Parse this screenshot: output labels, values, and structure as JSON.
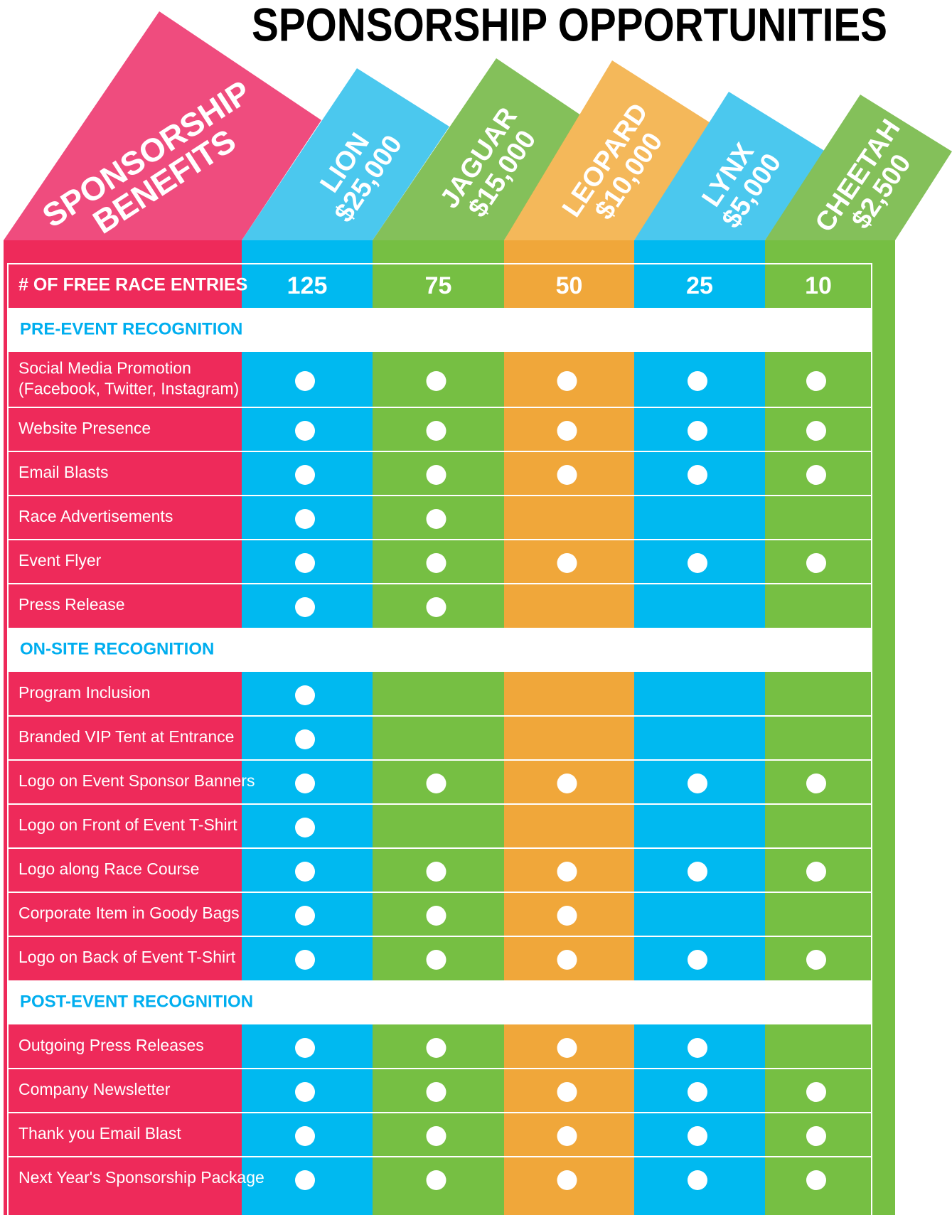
{
  "title": "SPONSORSHIP OPPORTUNITIES",
  "benefits_label": [
    "SPONSORSHIP",
    "BENEFITS"
  ],
  "tiers": [
    {
      "name": "LION",
      "price": "$25,000",
      "color": "#00b9f0",
      "tab_color": "#4bc8ee"
    },
    {
      "name": "JAGUAR",
      "price": "$15,000",
      "color": "#76bf43",
      "tab_color": "#84c05a"
    },
    {
      "name": "LEOPARD",
      "price": "$10,000",
      "color": "#f0a73a",
      "tab_color": "#f4b85a"
    },
    {
      "name": "LYNX",
      "price": "$5,000",
      "color": "#00b9f0",
      "tab_color": "#4bc8ee"
    },
    {
      "name": "CHEETAH",
      "price": "$2,500",
      "color": "#76bf43",
      "tab_color": "#84c05a"
    }
  ],
  "entries": {
    "label": "# OF FREE RACE ENTRIES",
    "values": [
      125,
      75,
      50,
      25,
      10
    ]
  },
  "sections": [
    {
      "title": "PRE-EVENT RECOGNITION",
      "rows": [
        {
          "label": [
            "Social Media Promotion",
            "(Facebook, Twitter, Instagram)"
          ],
          "checks": [
            true,
            true,
            true,
            true,
            true
          ]
        },
        {
          "label": [
            "Website Presence"
          ],
          "checks": [
            true,
            true,
            true,
            true,
            true
          ]
        },
        {
          "label": [
            "Email Blasts"
          ],
          "checks": [
            true,
            true,
            true,
            true,
            true
          ]
        },
        {
          "label": [
            "Race Advertisements"
          ],
          "checks": [
            true,
            true,
            false,
            false,
            false
          ]
        },
        {
          "label": [
            "Event Flyer"
          ],
          "checks": [
            true,
            true,
            true,
            true,
            true
          ]
        },
        {
          "label": [
            "Press Release"
          ],
          "checks": [
            true,
            true,
            false,
            false,
            false
          ]
        }
      ]
    },
    {
      "title": "ON-SITE RECOGNITION",
      "rows": [
        {
          "label": [
            "Program Inclusion"
          ],
          "checks": [
            true,
            false,
            false,
            false,
            false
          ]
        },
        {
          "label": [
            "Branded VIP Tent at Entrance"
          ],
          "checks": [
            true,
            false,
            false,
            false,
            false
          ]
        },
        {
          "label": [
            "Logo on Event Sponsor Banners"
          ],
          "checks": [
            true,
            true,
            true,
            true,
            true
          ]
        },
        {
          "label": [
            "Logo on Front of Event T-Shirt"
          ],
          "checks": [
            true,
            false,
            false,
            false,
            false
          ]
        },
        {
          "label": [
            "Logo along Race Course"
          ],
          "checks": [
            true,
            true,
            true,
            true,
            true
          ]
        },
        {
          "label": [
            "Corporate Item in Goody Bags"
          ],
          "checks": [
            true,
            true,
            true,
            false,
            false
          ]
        },
        {
          "label": [
            "Logo on Back of Event T-Shirt"
          ],
          "checks": [
            true,
            true,
            true,
            true,
            true
          ]
        }
      ]
    },
    {
      "title": "POST-EVENT RECOGNITION",
      "rows": [
        {
          "label": [
            "Outgoing Press Releases"
          ],
          "checks": [
            true,
            true,
            true,
            true,
            false
          ]
        },
        {
          "label": [
            "Company Newsletter"
          ],
          "checks": [
            true,
            true,
            true,
            true,
            true
          ]
        },
        {
          "label": [
            "Thank you Email Blast"
          ],
          "checks": [
            true,
            true,
            true,
            true,
            true
          ]
        },
        {
          "label": [
            "Next Year's Sponsorship Package"
          ],
          "checks": [
            true,
            true,
            true,
            true,
            true
          ]
        }
      ]
    }
  ]
}
